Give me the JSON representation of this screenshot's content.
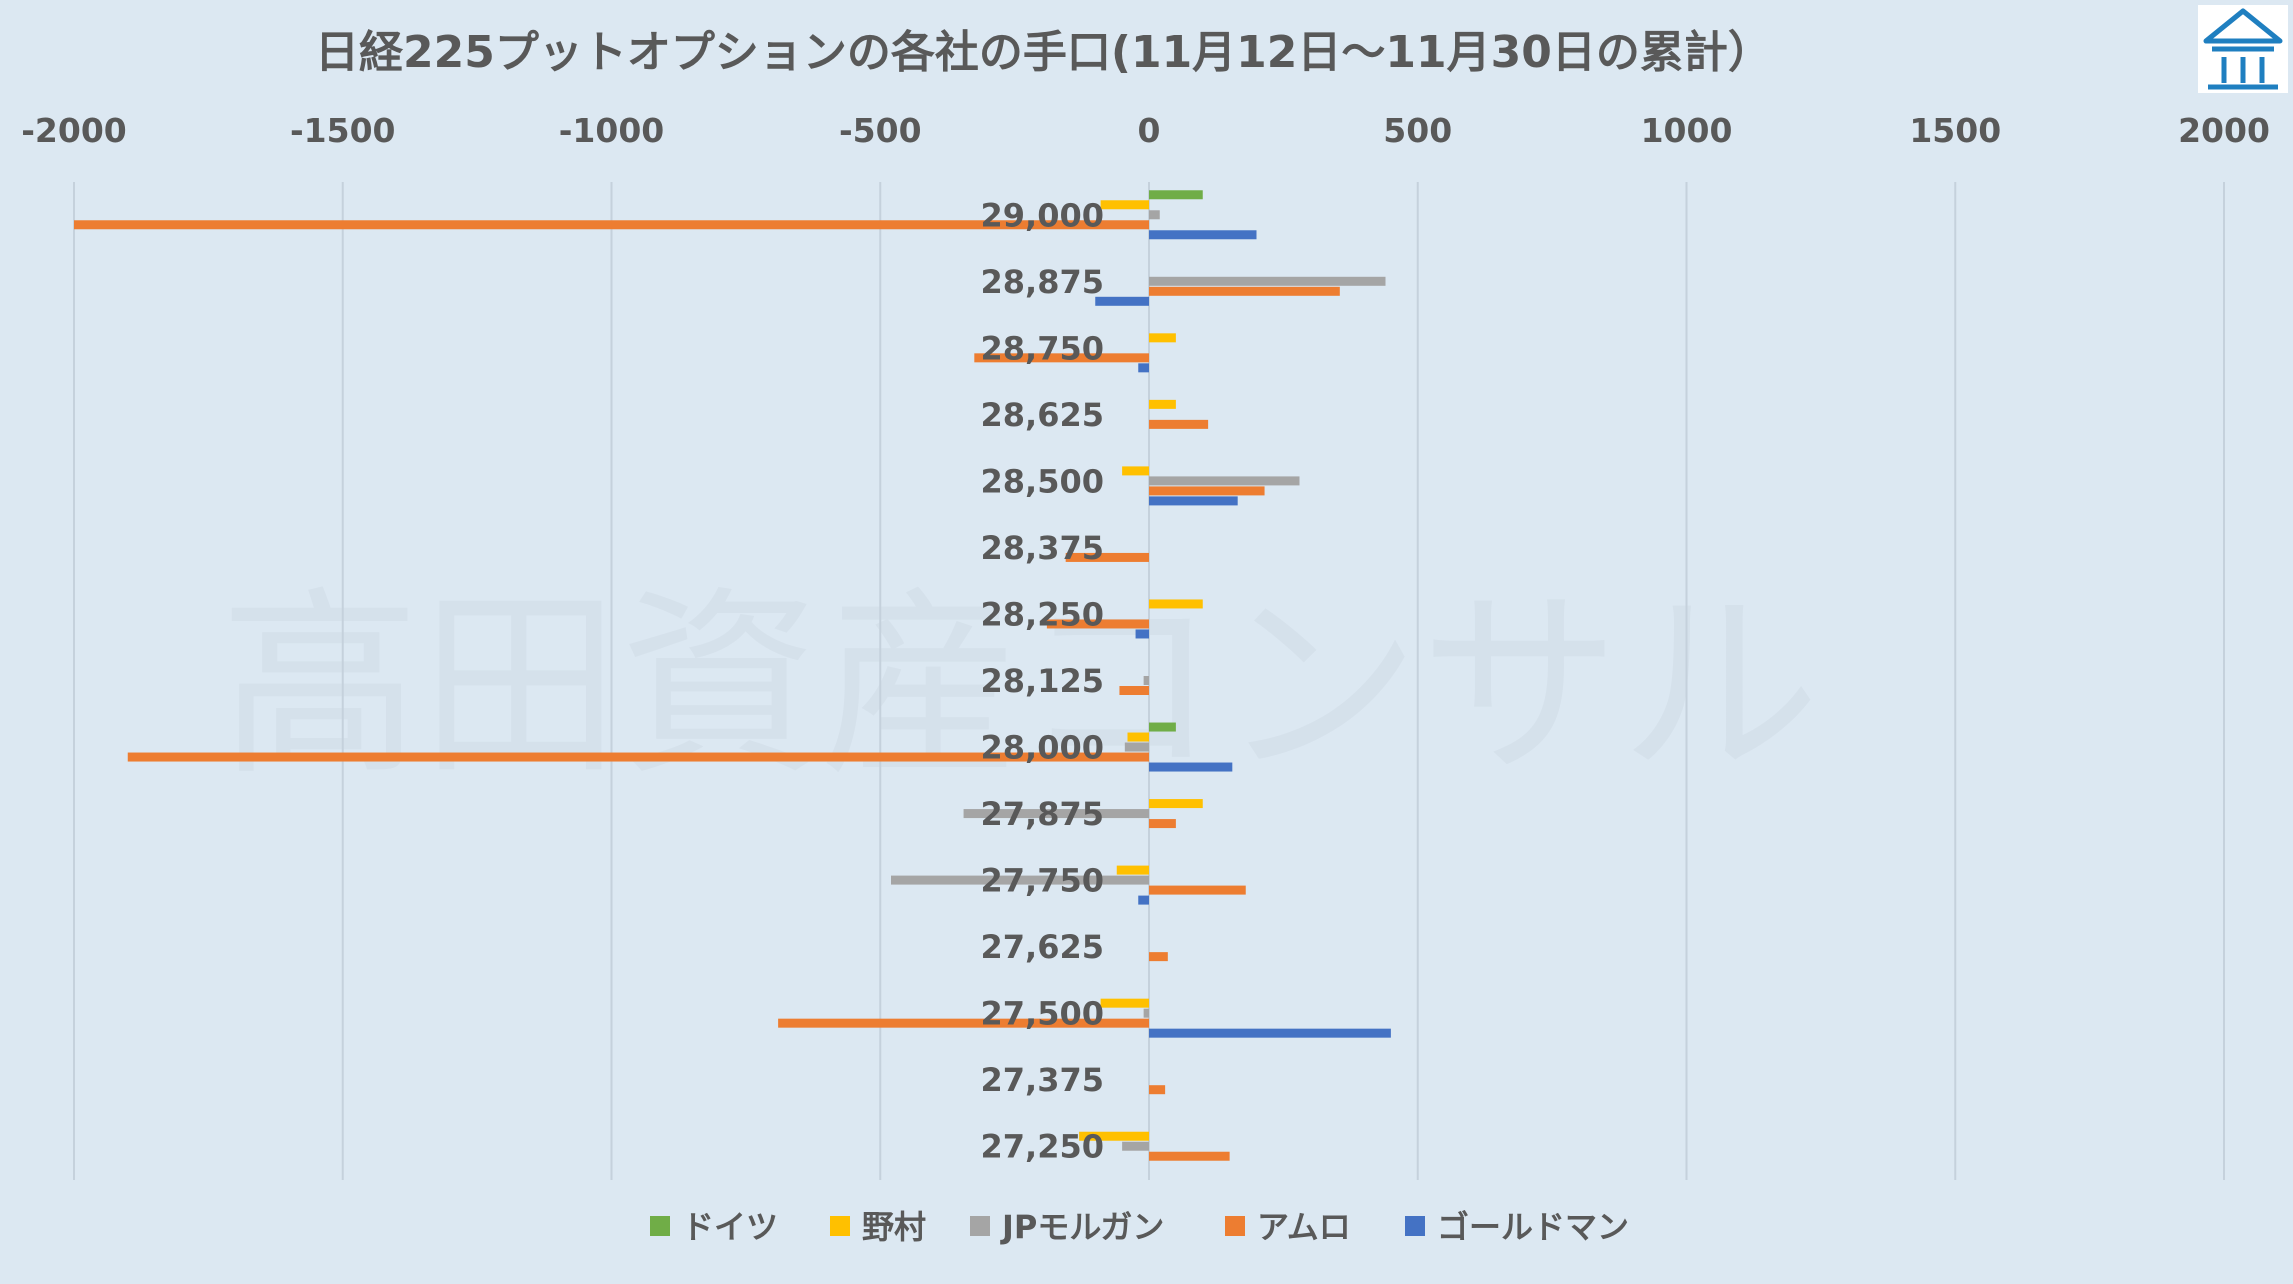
{
  "chart_data": {
    "type": "bar",
    "orientation": "horizontal",
    "title": "日経225プットオプションの各社の手口(11月12日～11月30日の累計）",
    "xlim": [
      -2000,
      2000
    ],
    "x_ticks": [
      "-2000",
      "-1500",
      "-1000",
      "-500",
      "0",
      "500",
      "1000",
      "1500",
      "2000"
    ],
    "x_tick_values": [
      -2000,
      -1500,
      -1000,
      -500,
      0,
      500,
      1000,
      1500,
      2000
    ],
    "x_axis_position": "top",
    "grid": true,
    "legend_position": "bottom",
    "categories": [
      "29,000",
      "28,875",
      "28,750",
      "28,625",
      "28,500",
      "28,375",
      "28,250",
      "28,125",
      "28,000",
      "27,875",
      "27,750",
      "27,625",
      "27,500",
      "27,375",
      "27,250"
    ],
    "series": [
      {
        "name": "ドイツ",
        "color": "#70ad47",
        "values": [
          100,
          0,
          0,
          0,
          0,
          0,
          0,
          0,
          50,
          0,
          0,
          0,
          0,
          0,
          0
        ]
      },
      {
        "name": "野村",
        "color": "#ffc000",
        "values": [
          -90,
          0,
          50,
          50,
          -50,
          0,
          100,
          0,
          -40,
          100,
          -60,
          0,
          -90,
          0,
          -130
        ]
      },
      {
        "name": "JPモルガン",
        "color": "#a5a5a5",
        "values": [
          20,
          440,
          0,
          0,
          280,
          0,
          0,
          -10,
          -45,
          -345,
          -480,
          0,
          -10,
          0,
          -50
        ]
      },
      {
        "name": "アムロ",
        "color": "#ed7d31",
        "values": [
          -2000,
          355,
          -325,
          110,
          215,
          -155,
          -190,
          -55,
          -1900,
          50,
          180,
          35,
          -690,
          30,
          150
        ]
      },
      {
        "name": "ゴールドマン",
        "color": "#4472c4",
        "values": [
          200,
          -100,
          -20,
          0,
          165,
          0,
          -25,
          0,
          155,
          0,
          -20,
          0,
          450,
          0,
          0
        ]
      }
    ]
  },
  "watermark": "高田資産コンサル",
  "logo": {
    "name": "building-icon",
    "color": "#1f7fc0"
  }
}
